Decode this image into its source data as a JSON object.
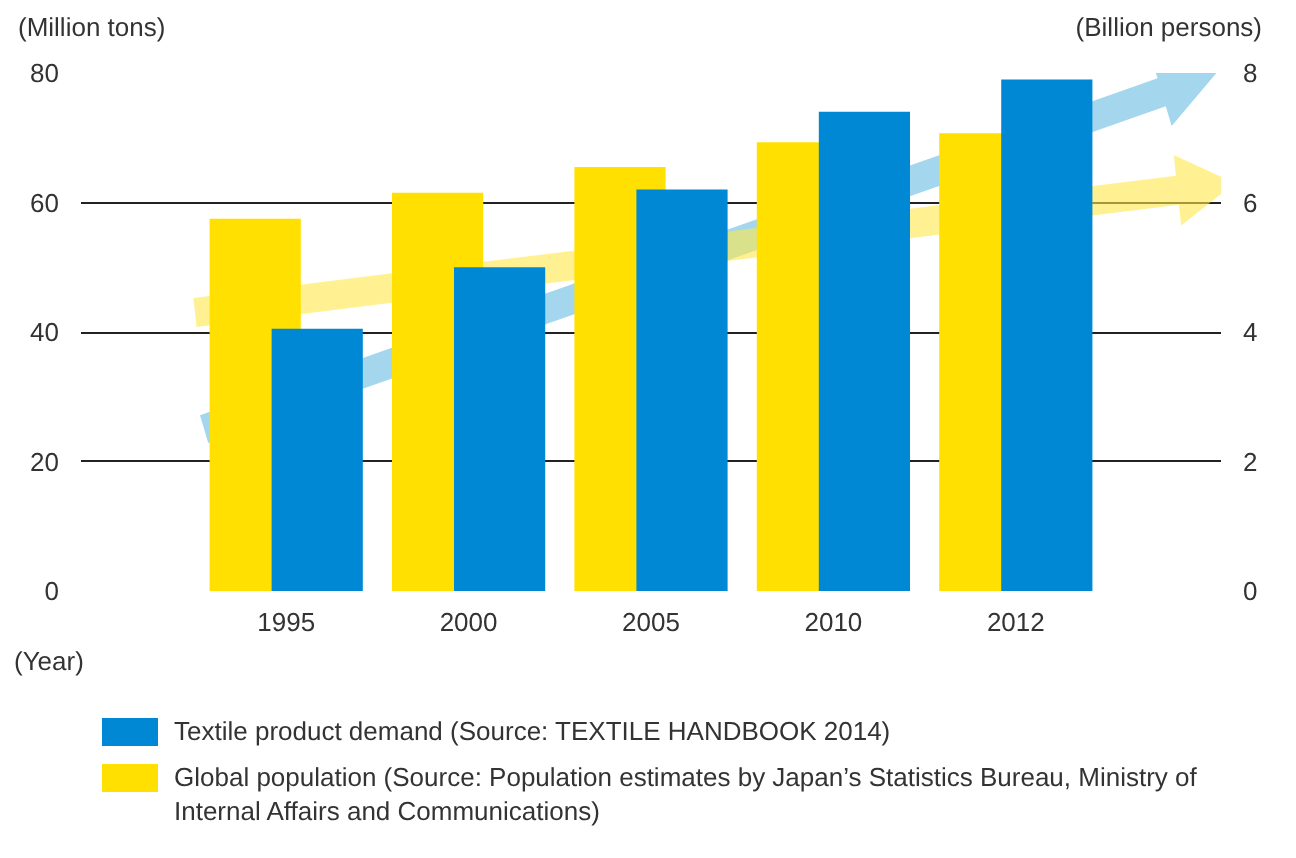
{
  "chart_data": {
    "type": "bar",
    "categories": [
      "1995",
      "2000",
      "2005",
      "2010",
      "2012"
    ],
    "xlabel": "(Year)",
    "ylabel": "(Million tons)",
    "y2label": "(Billion persons)",
    "series": [
      {
        "name": "Global population (Source: Population estimates by Japan’s Statistics Bureau, Ministry of Internal Affairs and Communications)",
        "color": "#ffe000",
        "values": [
          5.75,
          6.15,
          6.55,
          6.93,
          7.07
        ],
        "axis": "y2"
      },
      {
        "name": "Textile product demand (Source: TEXTILE HANDBOOK 2014)",
        "color": "#0088d4",
        "values": [
          40.5,
          50,
          62,
          74,
          79
        ]
      }
    ],
    "ylim": [
      0,
      80
    ],
    "yticks": [
      0,
      20,
      40,
      60,
      80
    ],
    "y2lim": [
      0,
      8
    ],
    "y2ticks": [
      0,
      2,
      4,
      6,
      8
    ],
    "grid": "y",
    "legend": "bottom"
  }
}
